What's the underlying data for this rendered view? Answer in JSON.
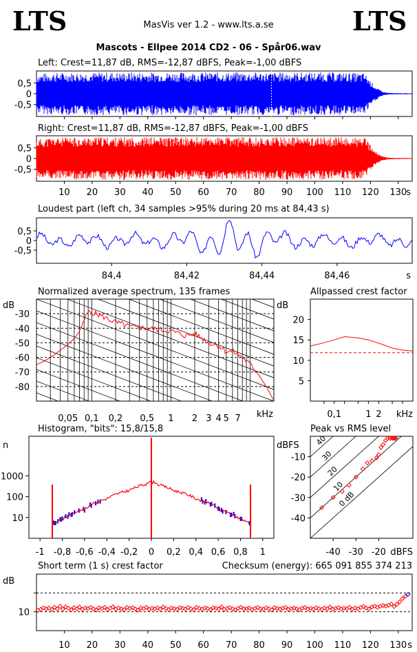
{
  "header": {
    "logo_left": "LTS",
    "logo_right": "LTS",
    "app": "MasVis ver 1.2 - www.lts.a.se",
    "track": "Mascots - Ellpee 2014 CD2 - 06 - Spår06.wav"
  },
  "panels": {
    "left_title": "Left: Crest=11,87 dB, RMS=-12,87 dBFS, Peak=-1,00 dBFS",
    "right_title": "Right: Crest=11,87 dB, RMS=-12,87 dBFS, Peak=-1,00 dBFS",
    "loudest_title": "Loudest part (left  ch, 34 samples >95% during 20 ms at 84,43 s)",
    "spectrum_title": "Normalized average spectrum, 135 frames",
    "allpass_title": "Allpassed crest factor",
    "histogram_title": "Histogram, \"bits\": 15,8/15,8",
    "pvr_title": "Peak vs RMS level",
    "crest_title": "Short term (1 s) crest factor",
    "checksum": "Checksum (energy):   665 091 855 374 213"
  },
  "colors": {
    "left": "#0000ff",
    "right": "#ff0000",
    "grid": "#000000"
  },
  "chart_data": [
    {
      "type": "area",
      "name": "left-waveform",
      "xlim": [
        0,
        135
      ],
      "ylim": [
        -1,
        1
      ],
      "yticks": [
        "0,5",
        "0",
        "-0,5"
      ],
      "envelope": {
        "x": [
          0,
          5,
          20,
          40,
          60,
          80,
          100,
          110,
          118,
          120,
          122,
          124,
          126,
          128,
          135
        ],
        "peak": [
          0.9,
          0.97,
          0.99,
          0.99,
          0.99,
          0.99,
          0.99,
          0.98,
          0.95,
          0.6,
          0.3,
          0.12,
          0.05,
          0.03,
          0.02
        ]
      },
      "marker_x": 84.43
    },
    {
      "type": "area",
      "name": "right-waveform",
      "xlim": [
        0,
        135
      ],
      "ylim": [
        -1,
        1
      ],
      "yticks": [
        "0,5",
        "0",
        "-0,5"
      ],
      "xticks": [
        "10",
        "20",
        "30",
        "40",
        "50",
        "60",
        "70",
        "80",
        "90",
        "100",
        "110",
        "120",
        "130"
      ],
      "xunit": "s",
      "envelope": {
        "x": [
          0,
          5,
          20,
          40,
          60,
          80,
          100,
          110,
          118,
          120,
          122,
          124,
          126,
          128,
          135
        ],
        "peak": [
          0.9,
          0.97,
          0.99,
          0.99,
          0.99,
          0.99,
          0.99,
          0.98,
          0.95,
          0.6,
          0.3,
          0.12,
          0.05,
          0.03,
          0.02
        ]
      }
    },
    {
      "type": "line",
      "name": "loudest-part",
      "xlim": [
        84.38,
        84.48
      ],
      "ylim": [
        -1,
        1
      ],
      "yticks": [
        "0,5",
        "0",
        "-0,5"
      ],
      "xticks": [
        "84,4",
        "84,42",
        "84,44",
        "84,46"
      ],
      "xunit": "s"
    },
    {
      "type": "line",
      "name": "spectrum",
      "ylabel": "dB",
      "ylim": [
        -90,
        -20
      ],
      "yticks": [
        "-30",
        "-40",
        "-50",
        "-60",
        "-70",
        "-80"
      ],
      "xticks": [
        "0,05",
        "0,1",
        "0,2",
        "0,5",
        "1",
        "2",
        "3",
        "4",
        "5",
        "7"
      ],
      "xunit": "kHz",
      "x_log": true,
      "x": [
        0.02,
        0.03,
        0.04,
        0.05,
        0.06,
        0.07,
        0.08,
        0.09,
        0.1,
        0.15,
        0.2,
        0.3,
        0.5,
        0.7,
        1,
        1.5,
        2,
        3,
        4,
        5,
        6,
        7,
        8,
        10,
        14,
        20
      ],
      "y": [
        -65,
        -60,
        -55,
        -51,
        -47,
        -42,
        -34,
        -29,
        -29,
        -33,
        -36,
        -39,
        -40,
        -41,
        -42,
        -45,
        -44,
        -50,
        -52,
        -56,
        -56,
        -58,
        -60,
        -65,
        -75,
        -90
      ]
    },
    {
      "type": "line",
      "name": "allpassed-crest",
      "ylabel": "dB",
      "ylim": [
        0,
        25
      ],
      "yticks": [
        "20",
        "15",
        "10",
        "5"
      ],
      "xticks": [
        "0,1",
        "1",
        "2"
      ],
      "xunit": "kHz",
      "x": [
        0.02,
        0.05,
        0.1,
        0.2,
        0.5,
        1,
        2,
        5,
        10,
        20
      ],
      "y": [
        13.5,
        14.3,
        15.0,
        15.8,
        15.5,
        15.0,
        14.2,
        13.0,
        12.5,
        12.3
      ],
      "reference": 11.87
    },
    {
      "type": "area",
      "name": "histogram",
      "ylabel": "n",
      "y_log": true,
      "xlim": [
        -1.1,
        1.1
      ],
      "yticks": [
        "1000",
        "100",
        "10"
      ],
      "xticks": [
        "-1",
        "-0,8",
        "-0,6",
        "-0,4",
        "-0,2",
        "0",
        "0,2",
        "0,4",
        "0,6",
        "0,8",
        "1"
      ],
      "x": [
        -0.89,
        -0.8,
        -0.6,
        -0.4,
        -0.2,
        -0.05,
        0,
        0.05,
        0.2,
        0.4,
        0.6,
        0.8,
        0.89
      ],
      "y": [
        5,
        8,
        25,
        80,
        200,
        400,
        50000,
        400,
        200,
        80,
        25,
        8,
        5
      ],
      "spikes_x": [
        -0.89,
        0,
        0.89
      ]
    },
    {
      "type": "scatter",
      "name": "peak-vs-rms",
      "ylabel": "dBFS",
      "xlabel": "dBFS",
      "xlim": [
        -50,
        -5
      ],
      "ylim": [
        -50,
        0
      ],
      "yticks": [
        "-10",
        "-20",
        "-30",
        "-40"
      ],
      "xticks": [
        "-40",
        "-30",
        "-20"
      ],
      "diag_labels": [
        "40",
        "30",
        "20",
        "10",
        "0 dB"
      ],
      "x": [
        -45,
        -40,
        -36,
        -33,
        -30,
        -27,
        -25,
        -23,
        -21,
        -20,
        -19,
        -18,
        -17,
        -16,
        -15,
        -14,
        -13.5,
        -13,
        -12.5
      ],
      "y": [
        -35,
        -30,
        -27,
        -24,
        -20,
        -16,
        -13,
        -12,
        -10.5,
        -9,
        -5.5,
        -4,
        -2,
        -1,
        -1,
        -1,
        -1,
        -1,
        -1
      ]
    },
    {
      "type": "scatter",
      "name": "short-term-crest",
      "ylabel": "dB",
      "ylim": [
        0,
        30
      ],
      "yticks": [
        "10"
      ],
      "xticks": [
        "10",
        "20",
        "30",
        "40",
        "50",
        "60",
        "70",
        "80",
        "90",
        "100",
        "110",
        "120",
        "130"
      ],
      "xunit": "s",
      "mean": 11.87,
      "max": 20,
      "values": [
        10.8,
        11.3,
        12.1,
        11.6,
        12.0,
        11.2,
        12.4,
        11.5,
        12.9,
        11.4,
        12.6,
        11.9,
        11.1,
        12.2,
        11.6,
        12.5,
        11.3,
        12.0,
        11.8,
        12.3,
        11.5,
        11.0,
        12.1,
        11.7,
        12.4,
        11.2,
        11.9,
        12.6,
        11.4,
        12.0,
        11.6,
        11.1,
        12.3,
        11.8,
        12.2,
        11.5,
        10.9,
        12.0,
        11.7,
        12.4,
        11.3,
        11.9,
        11.6,
        12.1,
        11.4,
        12.5,
        11.8,
        11.2,
        12.0,
        11.7,
        11.3,
        12.2,
        11.9,
        11.5,
        12.3,
        11.6,
        11.1,
        12.4,
        11.8,
        11.4,
        12.0,
        11.7,
        11.2,
        12.1,
        11.9,
        11.5,
        12.6,
        11.3,
        11.8,
        12.2,
        11.6,
        11.1,
        11.9,
        12.4,
        11.5,
        11.7,
        12.0,
        11.2,
        11.8,
        12.3,
        11.6,
        11.4,
        12.1,
        11.7,
        11.0,
        12.2,
        11.8,
        11.5,
        11.9,
        12.4,
        11.3,
        11.7,
        12.0,
        11.6,
        11.2,
        11.9,
        12.3,
        11.5,
        11.8,
        11.4,
        12.1,
        11.7,
        11.3,
        12.0,
        11.6,
        12.5,
        11.4,
        11.8,
        12.2,
        11.5,
        11.9,
        11.7,
        12.4,
        11.3,
        12.0,
        11.6,
        12.3,
        12.8,
        12.0,
        11.5,
        12.6,
        13.0,
        12.4,
        12.9,
        13.3,
        13.0,
        13.5,
        14.1,
        12.8,
        14.0,
        15.3,
        17.0,
        18.2,
        19.2
      ]
    }
  ]
}
